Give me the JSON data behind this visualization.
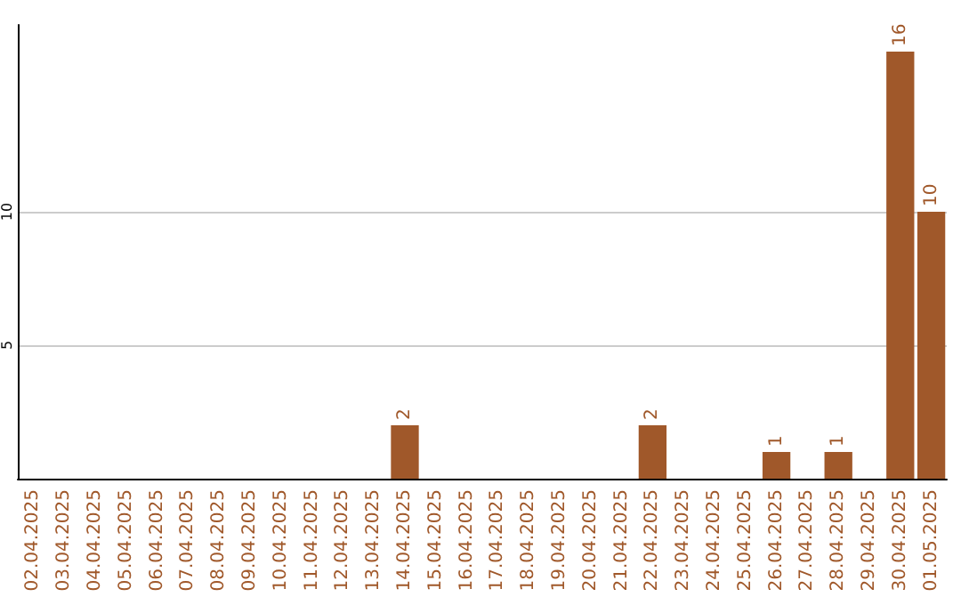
{
  "chart_data": {
    "type": "bar",
    "categories": [
      "02.04.2025",
      "03.04.2025",
      "04.04.2025",
      "05.04.2025",
      "06.04.2025",
      "07.04.2025",
      "08.04.2025",
      "09.04.2025",
      "10.04.2025",
      "11.04.2025",
      "12.04.2025",
      "13.04.2025",
      "14.04.2025",
      "15.04.2025",
      "16.04.2025",
      "17.04.2025",
      "18.04.2025",
      "19.04.2025",
      "20.04.2025",
      "21.04.2025",
      "22.04.2025",
      "23.04.2025",
      "24.04.2025",
      "25.04.2025",
      "26.04.2025",
      "27.04.2025",
      "28.04.2025",
      "29.04.2025",
      "30.04.2025",
      "01.05.2025"
    ],
    "values": [
      0,
      0,
      0,
      0,
      0,
      0,
      0,
      0,
      0,
      0,
      0,
      0,
      2,
      0,
      0,
      0,
      0,
      0,
      0,
      0,
      2,
      0,
      0,
      0,
      1,
      0,
      1,
      0,
      16,
      10
    ],
    "value_labels": [
      null,
      null,
      null,
      null,
      null,
      null,
      null,
      null,
      null,
      null,
      null,
      null,
      "2",
      null,
      null,
      null,
      null,
      null,
      null,
      null,
      "2",
      null,
      null,
      null,
      "1",
      null,
      "1",
      null,
      "16",
      "10"
    ],
    "color": "#a0582a",
    "ylim": [
      0,
      17
    ],
    "yticks": [
      5,
      10
    ],
    "grid": "y"
  }
}
